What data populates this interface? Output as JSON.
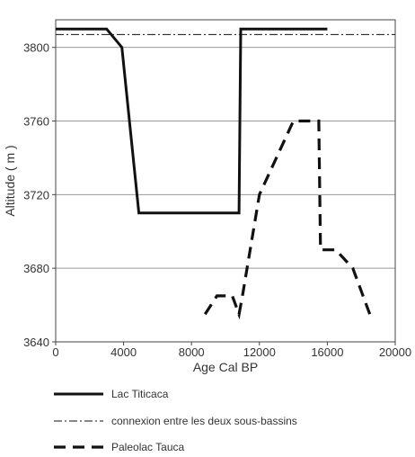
{
  "chart_data": {
    "type": "line",
    "xlabel": "Age Cal BP",
    "ylabel": "Altitude ( m )",
    "xlim": [
      0,
      20000
    ],
    "ylim": [
      3640,
      3815
    ],
    "x_ticks": [
      "0",
      "4000",
      "8000",
      "12000",
      "16000",
      "20000"
    ],
    "y_ticks": [
      "3640",
      "3680",
      "3720",
      "3760",
      "3800"
    ],
    "grid": "horizontal",
    "legend_position": "below",
    "series": [
      {
        "name": "Lac Titicaca",
        "style": "solid",
        "color": "#111111",
        "points": [
          [
            0,
            3810
          ],
          [
            3000,
            3810
          ],
          [
            3900,
            3800
          ],
          [
            4900,
            3710
          ],
          [
            10800,
            3710
          ],
          [
            10900,
            3810
          ],
          [
            16000,
            3810
          ]
        ]
      },
      {
        "name": "connexion entre les deux sous-bassins",
        "style": "dash-dot",
        "color": "#111111",
        "points": [
          [
            0,
            3807
          ],
          [
            20000,
            3807
          ]
        ]
      },
      {
        "name": "Paleolac Tauca",
        "style": "dashed",
        "color": "#111111",
        "points": [
          [
            8800,
            3655
          ],
          [
            9500,
            3665
          ],
          [
            10400,
            3665
          ],
          [
            10800,
            3655
          ],
          [
            11000,
            3665
          ],
          [
            12000,
            3720
          ],
          [
            13000,
            3740
          ],
          [
            14000,
            3760
          ],
          [
            15500,
            3760
          ],
          [
            15600,
            3690
          ],
          [
            16500,
            3690
          ],
          [
            17500,
            3680
          ],
          [
            18500,
            3655
          ]
        ]
      }
    ]
  }
}
